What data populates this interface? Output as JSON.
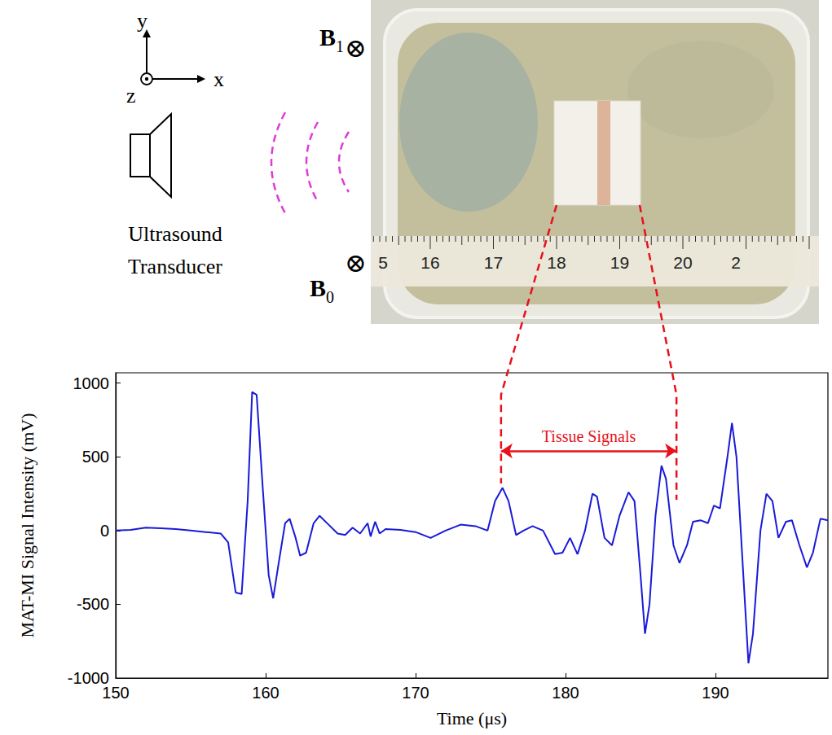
{
  "diagram": {
    "axes_labels": {
      "x": "x",
      "y": "y",
      "z": "z"
    },
    "b1": {
      "base": "B",
      "sub": "1"
    },
    "b0": {
      "base": "B",
      "sub": "0"
    },
    "field_symbol": "⊗",
    "transducer_label": [
      "Ultrasound",
      "Transducer"
    ],
    "ruler_labels": [
      "5",
      "16",
      "17",
      "18",
      "19",
      "20",
      "2"
    ]
  },
  "chart_data": {
    "type": "line",
    "x_label": "Time (μs)",
    "y_label": "MAT-MI Signal Intensity (mV)",
    "color": "#1a1ad8",
    "grid": false,
    "xlim": [
      150,
      197.5
    ],
    "xticks": [
      150,
      160,
      170,
      180,
      190
    ],
    "ylim": [
      -1000,
      1070
    ],
    "yticks": [
      -1000,
      -500,
      0,
      500,
      1000
    ],
    "annotation": {
      "text": "Tissue Signals",
      "x": [
        175.7,
        187.4
      ],
      "y": 540
    },
    "x": [
      150,
      151,
      152,
      153,
      154,
      155,
      156,
      157,
      157.5,
      158,
      158.4,
      158.8,
      159.1,
      159.4,
      159.8,
      160.2,
      160.5,
      160.9,
      161.3,
      161.6,
      162,
      162.3,
      162.7,
      163.2,
      163.6,
      164.2,
      164.8,
      165.3,
      165.8,
      166.3,
      166.8,
      167,
      167.3,
      167.6,
      168,
      169,
      170,
      171,
      172,
      173,
      174,
      174.8,
      175.3,
      175.8,
      176.2,
      176.7,
      177.2,
      177.8,
      178.5,
      179.3,
      179.8,
      180.3,
      180.8,
      181.3,
      181.8,
      182.1,
      182.6,
      183.1,
      183.6,
      184.2,
      184.6,
      185,
      185.3,
      185.6,
      186,
      186.4,
      186.7,
      187.2,
      187.6,
      188.1,
      188.5,
      189,
      189.5,
      189.9,
      190.3,
      190.8,
      191.1,
      191.4,
      191.8,
      192.2,
      192.5,
      193,
      193.4,
      193.8,
      194.2,
      194.7,
      195.1,
      195.6,
      196.1,
      196.5,
      197,
      197.5
    ],
    "values": [
      0,
      5,
      20,
      15,
      10,
      0,
      -10,
      -20,
      -80,
      -420,
      -430,
      200,
      940,
      920,
      300,
      -300,
      -460,
      -200,
      50,
      80,
      -50,
      -170,
      -150,
      50,
      100,
      40,
      -20,
      -30,
      20,
      -20,
      50,
      -40,
      60,
      -20,
      10,
      5,
      -10,
      -50,
      0,
      40,
      30,
      0,
      200,
      290,
      200,
      -30,
      0,
      30,
      0,
      -160,
      -150,
      -50,
      -160,
      0,
      250,
      230,
      -50,
      -100,
      100,
      260,
      200,
      -300,
      -700,
      -500,
      100,
      440,
      350,
      -100,
      -220,
      -100,
      60,
      70,
      50,
      170,
      150,
      500,
      730,
      500,
      -200,
      -900,
      -700,
      0,
      250,
      200,
      -50,
      60,
      70,
      -100,
      -250,
      -150,
      80,
      70
    ]
  }
}
